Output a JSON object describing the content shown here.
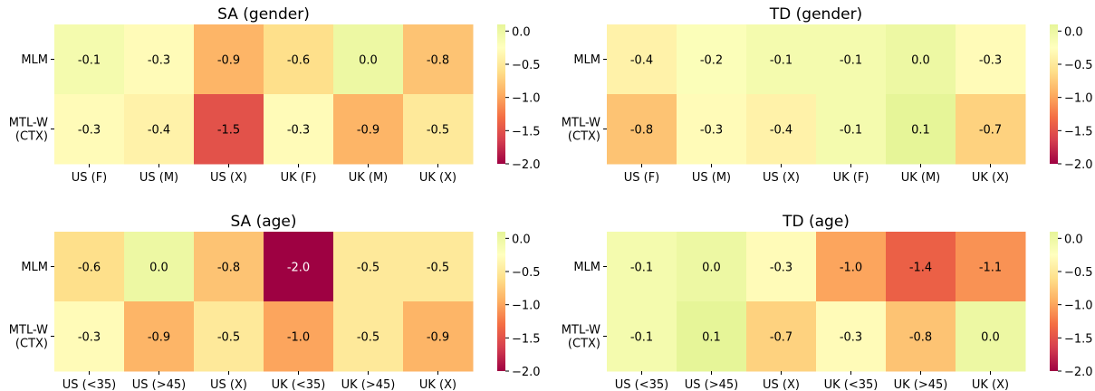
{
  "chart_data": [
    {
      "type": "heatmap",
      "title": "SA (gender)",
      "rows": [
        "MLM",
        "MTL-W\n(CTX)"
      ],
      "columns": [
        "US (F)",
        "US (M)",
        "US (X)",
        "UK (F)",
        "UK (M)",
        "UK (X)"
      ],
      "values": [
        [
          -0.1,
          -0.3,
          -0.9,
          -0.6,
          0.0,
          -0.8
        ],
        [
          -0.3,
          -0.4,
          -1.5,
          -0.3,
          -0.9,
          -0.5
        ]
      ],
      "colorbar": {
        "range": [
          -2.0,
          0.1
        ],
        "ticks": [
          "0.0",
          "-0.5",
          "-1.0",
          "-1.5",
          "-2.0"
        ]
      }
    },
    {
      "type": "heatmap",
      "title": "TD (gender)",
      "rows": [
        "MLM",
        "MTL-W\n(CTX)"
      ],
      "columns": [
        "US (F)",
        "US (M)",
        "US (X)",
        "UK (F)",
        "UK (M)",
        "UK (X)"
      ],
      "values": [
        [
          -0.4,
          -0.2,
          -0.1,
          -0.1,
          0.0,
          -0.3
        ],
        [
          -0.8,
          -0.3,
          -0.4,
          -0.1,
          0.1,
          -0.7
        ]
      ],
      "colorbar": {
        "range": [
          -2.0,
          0.1
        ],
        "ticks": [
          "0.0",
          "-0.5",
          "-1.0",
          "-1.5",
          "-2.0"
        ]
      }
    },
    {
      "type": "heatmap",
      "title": "SA (age)",
      "rows": [
        "MLM",
        "MTL-W\n(CTX)"
      ],
      "columns": [
        "US (<35)",
        "US (>45)",
        "US (X)",
        "UK (<35)",
        "UK (>45)",
        "UK (X)"
      ],
      "values": [
        [
          -0.6,
          0.0,
          -0.8,
          -2.0,
          -0.5,
          -0.5
        ],
        [
          -0.3,
          -0.9,
          -0.5,
          -1.0,
          -0.5,
          -0.9
        ]
      ],
      "colorbar": {
        "range": [
          -2.0,
          0.1
        ],
        "ticks": [
          "0.0",
          "-0.5",
          "-1.0",
          "-1.5",
          "-2.0"
        ]
      }
    },
    {
      "type": "heatmap",
      "title": "TD (age)",
      "rows": [
        "MLM",
        "MTL-W\n(CTX)"
      ],
      "columns": [
        "US (<35)",
        "US (>45)",
        "US (X)",
        "UK (<35)",
        "UK (>45)",
        "UK (X)"
      ],
      "values": [
        [
          -0.1,
          0.0,
          -0.3,
          -1.0,
          -1.4,
          -1.1
        ],
        [
          -0.1,
          0.1,
          -0.7,
          -0.3,
          -0.8,
          0.0
        ]
      ],
      "colorbar": {
        "range": [
          -2.0,
          0.1
        ],
        "ticks": [
          "0.0",
          "-0.5",
          "-1.0",
          "-1.5",
          "-2.0"
        ]
      }
    }
  ],
  "colors": {
    "colormap": "Spectral",
    "stops": [
      "#9e0142",
      "#d53e4f",
      "#f46d43",
      "#fdae61",
      "#fee08b",
      "#ffffbf",
      "#e6f598"
    ]
  }
}
